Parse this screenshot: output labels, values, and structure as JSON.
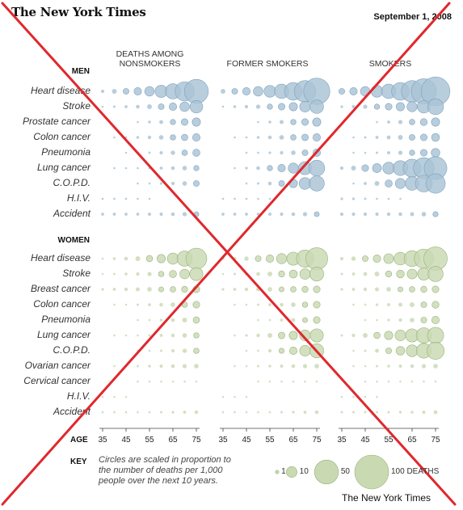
{
  "header": {
    "masthead": "The New York Times",
    "date": "September 1, 2008"
  },
  "credit": "The New York Times",
  "chart_data": {
    "type": "bubble-matrix",
    "title": "",
    "columns": [
      "DEATHS AMONG NONSMOKERS",
      "FORMER SMOKERS",
      "SMOKERS"
    ],
    "ages": [
      "35",
      "40",
      "45",
      "50",
      "55",
      "60",
      "65",
      "70",
      "75"
    ],
    "age_ticks": [
      "35",
      "45",
      "55",
      "65",
      "75"
    ],
    "age_label": "AGE",
    "size_metric": "deaths per 1,000 people over the next 10 years",
    "colors": {
      "men": "#a9c3d6",
      "men_stroke": "#7fa2bd",
      "women": "#c9d9b2",
      "women_stroke": "#98b27a",
      "cross": "#e0282c"
    },
    "groups": [
      {
        "name": "MEN",
        "rows": [
          {
            "label": "Heart disease",
            "values": [
              [
                1,
                2,
                3,
                5,
                8,
                13,
                20,
                32,
                50
              ],
              [
                2,
                3,
                5,
                8,
                12,
                18,
                27,
                40,
                60
              ],
              [
                3,
                5,
                8,
                12,
                18,
                27,
                40,
                55,
                72
              ]
            ]
          },
          {
            "label": "Stroke",
            "values": [
              [
                0.3,
                0.5,
                0.8,
                1.2,
                2,
                3,
                5,
                8,
                14
              ],
              [
                0.4,
                0.7,
                1,
                1.6,
                2.5,
                4,
                6,
                10,
                16
              ],
              [
                0.6,
                1,
                1.5,
                2.5,
                4,
                6,
                9,
                14,
                22
              ]
            ]
          },
          {
            "label": "Prostate cancer",
            "values": [
              [
                0,
                0,
                0,
                0.3,
                0.7,
                1.3,
                2.5,
                4,
                6
              ],
              [
                0,
                0,
                0,
                0.3,
                0.7,
                1.4,
                2.6,
                4,
                6
              ],
              [
                0,
                0,
                0,
                0.3,
                0.8,
                1.5,
                2.7,
                4.2,
                6
              ]
            ]
          },
          {
            "label": "Colon cancer",
            "values": [
              [
                0,
                0.2,
                0.4,
                0.7,
                1.1,
                1.8,
                2.6,
                3.6,
                5
              ],
              [
                0,
                0.2,
                0.4,
                0.7,
                1.2,
                1.9,
                2.7,
                3.8,
                5
              ],
              [
                0,
                0.3,
                0.5,
                0.8,
                1.3,
                2,
                3,
                4,
                5.5
              ]
            ]
          },
          {
            "label": "Pneumonia",
            "values": [
              [
                0,
                0,
                0.2,
                0.3,
                0.5,
                0.9,
                1.6,
                2.7,
                4.5
              ],
              [
                0,
                0,
                0.2,
                0.4,
                0.6,
                1,
                1.8,
                3,
                5
              ],
              [
                0,
                0.2,
                0.3,
                0.5,
                0.9,
                1.5,
                2.5,
                4,
                6.5
              ]
            ]
          },
          {
            "label": "Lung cancer",
            "values": [
              [
                0,
                0.1,
                0.2,
                0.3,
                0.5,
                0.8,
                1.2,
                1.8,
                2.5
              ],
              [
                0,
                0.3,
                0.6,
                1.2,
                2.5,
                5,
                9,
                15,
                22
              ],
              [
                1,
                2,
                4,
                7,
                12,
                19,
                28,
                38,
                45
              ]
            ]
          },
          {
            "label": "C.O.P.D.",
            "values": [
              [
                0,
                0,
                0,
                0.2,
                0.3,
                0.6,
                1,
                1.8,
                3
              ],
              [
                0,
                0,
                0.2,
                0.5,
                1.2,
                2.8,
                6,
                12,
                20
              ],
              [
                0,
                0.3,
                0.8,
                2,
                4.5,
                9,
                16,
                25,
                33
              ]
            ]
          },
          {
            "label": "H.I.V.",
            "values": [
              [
                0.4,
                0.4,
                0.4,
                0.3,
                0.2,
                0,
                0,
                0,
                0
              ],
              [
                0.4,
                0.4,
                0.4,
                0.3,
                0.2,
                0,
                0,
                0,
                0
              ],
              [
                0.6,
                0.6,
                0.5,
                0.4,
                0.3,
                0.2,
                0,
                0,
                0
              ]
            ]
          },
          {
            "label": "Accident",
            "values": [
              [
                0.8,
                0.8,
                0.8,
                0.8,
                0.9,
                1,
                1.2,
                1.6,
                2.2
              ],
              [
                0.8,
                0.8,
                0.8,
                0.8,
                0.9,
                1,
                1.2,
                1.6,
                2.2
              ],
              [
                1,
                1,
                1,
                1,
                1.1,
                1.2,
                1.4,
                1.8,
                2.4
              ]
            ]
          }
        ]
      },
      {
        "name": "WOMEN",
        "rows": [
          {
            "label": "Heart disease",
            "values": [
              [
                0.4,
                0.7,
                1.2,
                2,
                3.5,
                6,
                11,
                20,
                38
              ],
              [
                0.6,
                1,
                1.7,
                3,
                5,
                9,
                15,
                26,
                42
              ],
              [
                1,
                1.7,
                3,
                5,
                8.5,
                14,
                22,
                32,
                48
              ]
            ]
          },
          {
            "label": "Stroke",
            "values": [
              [
                0.3,
                0.4,
                0.7,
                1,
                1.6,
                2.6,
                4.5,
                8,
                15
              ],
              [
                0.3,
                0.5,
                0.8,
                1.3,
                2,
                3.3,
                5.5,
                9.5,
                17
              ],
              [
                0.5,
                0.8,
                1.3,
                2,
                3.3,
                5.3,
                8.5,
                13,
                20
              ]
            ]
          },
          {
            "label": "Breast cancer",
            "values": [
              [
                0.6,
                0.8,
                1.1,
                1.4,
                1.8,
                2.2,
                2.7,
                3.3,
                4
              ],
              [
                0.6,
                0.8,
                1.1,
                1.4,
                1.8,
                2.2,
                2.7,
                3.3,
                4
              ],
              [
                0.6,
                0.8,
                1.1,
                1.4,
                1.8,
                2.2,
                2.7,
                3.3,
                4
              ]
            ]
          },
          {
            "label": "Colon cancer",
            "values": [
              [
                0,
                0.2,
                0.3,
                0.5,
                0.8,
                1.2,
                1.8,
                2.6,
                4
              ],
              [
                0,
                0.2,
                0.3,
                0.5,
                0.8,
                1.2,
                1.8,
                2.6,
                4
              ],
              [
                0,
                0.2,
                0.4,
                0.6,
                0.9,
                1.4,
                2,
                3,
                4.2
              ]
            ]
          },
          {
            "label": "Pneumonia",
            "values": [
              [
                0,
                0,
                0,
                0.2,
                0.4,
                0.7,
                1.2,
                2,
                3.5
              ],
              [
                0,
                0,
                0,
                0.2,
                0.4,
                0.8,
                1.3,
                2.2,
                4
              ],
              [
                0,
                0,
                0.2,
                0.3,
                0.6,
                1,
                1.8,
                3,
                5
              ]
            ]
          },
          {
            "label": "Lung cancer",
            "values": [
              [
                0,
                0.1,
                0.2,
                0.3,
                0.5,
                0.8,
                1.2,
                1.8,
                2.6
              ],
              [
                0,
                0.3,
                0.6,
                1.1,
                2,
                3.7,
                6,
                10,
                15
              ],
              [
                0.5,
                1,
                2,
                3.5,
                6,
                10,
                15,
                20,
                23
              ]
            ]
          },
          {
            "label": "C.O.P.D.",
            "values": [
              [
                0,
                0,
                0,
                0.2,
                0.3,
                0.5,
                0.9,
                1.6,
                2.6
              ],
              [
                0,
                0,
                0.2,
                0.4,
                1,
                2.3,
                5,
                10,
                17
              ],
              [
                0,
                0.2,
                0.5,
                1.3,
                3,
                6.5,
                12,
                19,
                26
              ]
            ]
          },
          {
            "label": "Ovarian cancer",
            "values": [
              [
                0,
                0.2,
                0.3,
                0.5,
                0.7,
                0.9,
                1.2,
                1.5,
                1.8
              ],
              [
                0,
                0.2,
                0.3,
                0.5,
                0.7,
                0.9,
                1.2,
                1.5,
                1.8
              ],
              [
                0,
                0.2,
                0.3,
                0.5,
                0.7,
                0.9,
                1.2,
                1.5,
                1.8
              ]
            ]
          },
          {
            "label": "Cervical cancer",
            "values": [
              [
                0,
                0,
                0,
                0.2,
                0.2,
                0.2,
                0.2,
                0.2,
                0.2
              ],
              [
                0,
                0,
                0,
                0.2,
                0.2,
                0.2,
                0.2,
                0.2,
                0.2
              ],
              [
                0,
                0,
                0.2,
                0.2,
                0.2,
                0.2,
                0.2,
                0.2,
                0.2
              ]
            ]
          },
          {
            "label": "H.I.V.",
            "values": [
              [
                0.2,
                0.2,
                0.2,
                0,
                0,
                0,
                0,
                0,
                0
              ],
              [
                0.2,
                0.2,
                0.2,
                0,
                0,
                0,
                0,
                0,
                0
              ],
              [
                0.2,
                0.2,
                0.2,
                0.2,
                0,
                0,
                0,
                0,
                0
              ]
            ]
          },
          {
            "label": "Accident",
            "values": [
              [
                0.4,
                0.4,
                0.4,
                0.4,
                0.4,
                0.5,
                0.6,
                0.8,
                1.2
              ],
              [
                0.4,
                0.4,
                0.4,
                0.4,
                0.4,
                0.5,
                0.6,
                0.8,
                1.2
              ],
              [
                0.5,
                0.5,
                0.5,
                0.5,
                0.5,
                0.6,
                0.7,
                0.9,
                1.3
              ]
            ]
          }
        ]
      }
    ]
  },
  "key": {
    "label": "KEY",
    "text": "Circles are scaled in proportion to the number of deaths per 1,000 people over the next 10 years.",
    "text_lines": [
      "Circles are scaled in proportion to",
      "the number of deaths per 1,000",
      "people over the next 10 years."
    ],
    "items": [
      {
        "value": 1,
        "label": "1"
      },
      {
        "value": 10,
        "label": "10"
      },
      {
        "value": 50,
        "label": "50"
      },
      {
        "value": 100,
        "label": "100 DEATHS"
      }
    ]
  }
}
